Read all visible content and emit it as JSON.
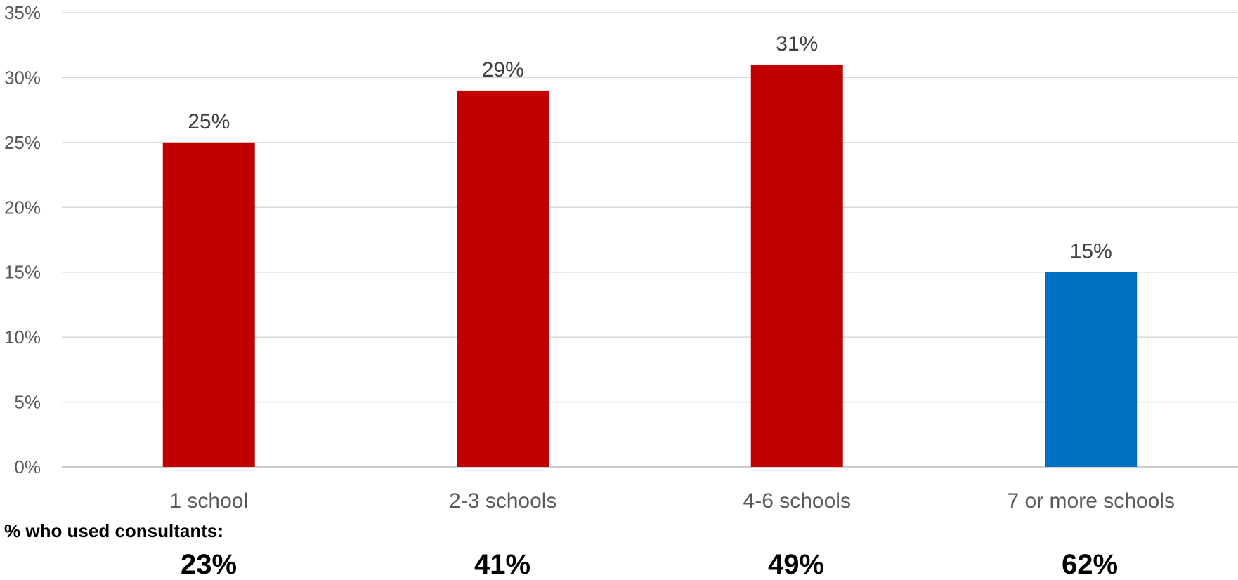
{
  "chart_data": {
    "type": "bar",
    "categories": [
      "1 school",
      "2-3 schools",
      "4-6 schools",
      "7 or more schools"
    ],
    "values": [
      25,
      29,
      31,
      15
    ],
    "value_labels": [
      "25%",
      "29%",
      "31%",
      "15%"
    ],
    "bar_colors": [
      "#c00000",
      "#c00000",
      "#c00000",
      "#0070c0"
    ],
    "ylim": [
      0,
      35
    ],
    "y_ticks": [
      0,
      5,
      10,
      15,
      20,
      25,
      30,
      35
    ],
    "y_tick_labels": [
      "0%",
      "5%",
      "10%",
      "15%",
      "20%",
      "25%",
      "30%",
      "35%"
    ],
    "grid": true,
    "legend": "none"
  },
  "consultants": {
    "caption": "% who used consultants:",
    "values": [
      "23%",
      "41%",
      "49%",
      "62%"
    ]
  }
}
